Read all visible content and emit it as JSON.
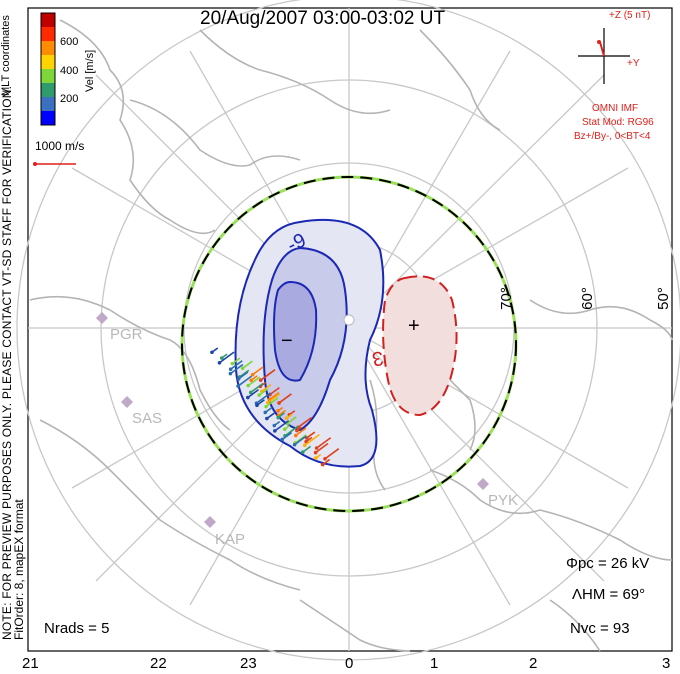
{
  "title": "20/Aug/2007 03:00-03:02 UT",
  "colorbar": {
    "label": "Vel [m/s]",
    "ticks": [
      "600",
      "400",
      "200"
    ],
    "colors": [
      "#0000ff",
      "#3b6fbf",
      "#2f9b6a",
      "#7fd63b",
      "#ffd400",
      "#ff8c00",
      "#ff2a00",
      "#c00000"
    ]
  },
  "coord_label": "MLT coordinates",
  "scale_label": "1000 m/s",
  "note_lines": [
    "NOTE: FOR PREVIEW PURPOSES ONLY. PLEASE CONTACT VT-SD STAFF FOR VERIFICATION.",
    "FitOrder: 8, mapEX format"
  ],
  "imf": {
    "z_label": "+Z (5 nT)",
    "y_label": "+Y",
    "source": "OMNI IMF",
    "model": "Stat Mod: RG96",
    "condition": "Bz+/By-, 0<BT<4"
  },
  "contours": {
    "neg_label": "-9",
    "pos_label": "3",
    "minus_mark": "−",
    "plus_mark": "+"
  },
  "lat_labels": [
    "70°",
    "60°",
    "50°"
  ],
  "stations": [
    "PGR",
    "SAS",
    "KAP",
    "PYK"
  ],
  "stats": {
    "phi_pc": "Φpc = 26 kV",
    "lambda_hm": "ΛHM = 69°",
    "n_vc": "Nvc = 93",
    "n_rads": "Nrads = 5"
  },
  "mlt_ticks": [
    "21",
    "22",
    "23",
    "0",
    "1",
    "2",
    "3"
  ],
  "colors": {
    "negative_cell": "#1a28b4",
    "positive_cell": "#d02020",
    "grid": "#c8c8c8",
    "land": "#b4b4b4",
    "hmb_green": "#9be05a"
  }
}
